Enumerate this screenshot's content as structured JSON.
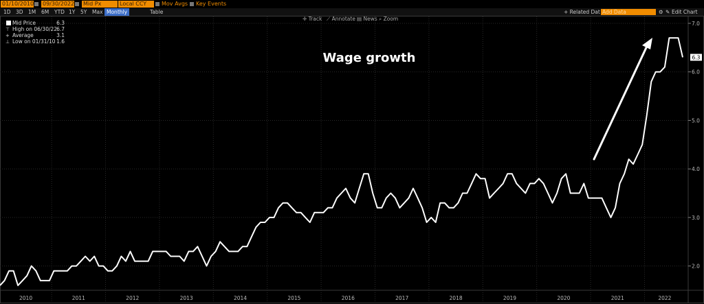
{
  "toolbar": {
    "start_date": "01/10/2010",
    "end_date": "09/30/2022",
    "field": "Mid Px",
    "currency": "Local CCY",
    "mov_avgs": "Mov Avgs",
    "key_events": "Key Events"
  },
  "timeframes": [
    "1D",
    "3D",
    "1M",
    "6M",
    "YTD",
    "1Y",
    "5Y",
    "Max"
  ],
  "period": "Monthly",
  "table_label": "Table",
  "right_tools": {
    "related": "+ Related Dat",
    "add_data_placeholder": "Add Data",
    "edit_chart": "Edit Chart"
  },
  "subtools": [
    "Track",
    "Annotate",
    "News",
    "Zoom"
  ],
  "legend": {
    "mid_price": {
      "label": "Mid Price",
      "value": "6.3"
    },
    "high": {
      "label": "High on 06/30/22",
      "value": "6.7"
    },
    "average": {
      "label": "Average",
      "value": "3.1"
    },
    "low": {
      "label": "Low on 01/31/10",
      "value": "1.6"
    }
  },
  "colors": {
    "background": "#000000",
    "line": "#ffffff",
    "accent": "#f08c00",
    "grid": "#2a2a2a"
  },
  "chart_data": {
    "type": "line",
    "annotation": "Wage growth",
    "last_value_label": "6.3",
    "ylim": [
      1.5,
      7.0
    ],
    "yticks": [
      "2.0",
      "3.0",
      "4.0",
      "5.0",
      "6.0",
      "7.0"
    ],
    "ytick_values": [
      2.0,
      3.0,
      4.0,
      5.0,
      6.0,
      7.0
    ],
    "xtick_labels": [
      "2010",
      "2011",
      "2012",
      "2013",
      "2014",
      "2015",
      "2016",
      "2017",
      "2018",
      "2019",
      "2020",
      "2021",
      "2022"
    ],
    "x_start": "2010-01",
    "x_end": "2022-09",
    "series": [
      {
        "values": [
          1.6,
          1.7,
          1.9,
          1.9,
          1.6,
          1.7,
          1.8,
          2.0,
          1.9,
          1.7,
          1.7,
          1.7,
          1.9,
          1.9,
          1.9,
          1.9,
          2.0,
          2.0,
          2.1,
          2.2,
          2.1,
          2.2,
          2.0,
          2.0,
          1.9,
          1.9,
          2.0,
          2.2,
          2.1,
          2.3,
          2.1,
          2.1,
          2.1,
          2.1,
          2.3,
          2.3,
          2.3,
          2.3,
          2.2,
          2.2,
          2.2,
          2.1,
          2.3,
          2.3,
          2.4,
          2.2,
          2.0,
          2.2,
          2.3,
          2.5,
          2.4,
          2.3,
          2.3,
          2.3,
          2.4,
          2.4,
          2.6,
          2.8,
          2.9,
          2.9,
          3.0,
          3.0,
          3.2,
          3.3,
          3.3,
          3.2,
          3.1,
          3.1,
          3.0,
          2.9,
          3.1,
          3.1,
          3.1,
          3.2,
          3.2,
          3.4,
          3.5,
          3.6,
          3.4,
          3.3,
          3.6,
          3.9,
          3.9,
          3.5,
          3.2,
          3.2,
          3.4,
          3.5,
          3.4,
          3.2,
          3.3,
          3.4,
          3.6,
          3.4,
          3.2,
          2.9,
          3.0,
          2.9,
          3.3,
          3.3,
          3.2,
          3.2,
          3.3,
          3.5,
          3.5,
          3.7,
          3.9,
          3.8,
          3.8,
          3.4,
          3.5,
          3.6,
          3.7,
          3.9,
          3.9,
          3.7,
          3.6,
          3.5,
          3.7,
          3.7,
          3.8,
          3.7,
          3.5,
          3.3,
          3.5,
          3.8,
          3.9,
          3.5,
          3.5,
          3.5,
          3.7,
          3.4,
          3.4,
          3.4,
          3.4,
          3.2,
          3.0,
          3.2,
          3.7,
          3.9,
          4.2,
          4.1,
          4.3,
          4.5,
          5.1,
          5.8,
          6.0,
          6.0,
          6.1,
          6.7,
          6.7,
          6.7,
          6.3
        ]
      }
    ]
  }
}
